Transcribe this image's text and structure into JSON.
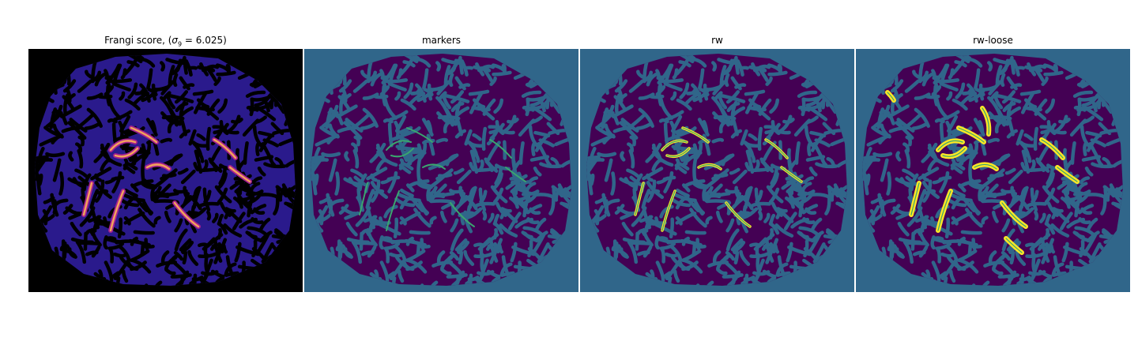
{
  "figure": {
    "panels": [
      {
        "title_prefix": "Frangi score, (",
        "title_sigma": "σ",
        "title_sub": "9",
        "title_suffix": " = 6.025)",
        "kind": "frangi"
      },
      {
        "title": "markers",
        "kind": "markers"
      },
      {
        "title": "rw",
        "kind": "rw"
      },
      {
        "title": "rw-loose",
        "kind": "rwloose"
      }
    ],
    "colors": {
      "frangi_background": "#000000",
      "frangi_tissue": "#2a1a8c",
      "frangi_vessel": "#f2a25c",
      "label_background": "#30668a",
      "label_tissue": "#440154",
      "marker_green": "#3aa56f",
      "segment_yellow": "#fde725"
    }
  }
}
